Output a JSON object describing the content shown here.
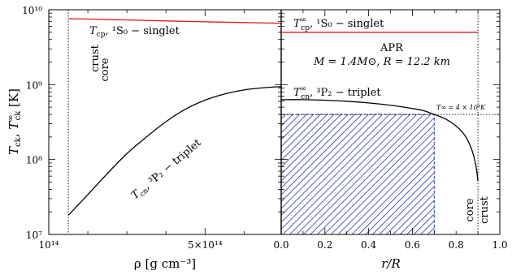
{
  "chart_data": [
    {
      "type": "line",
      "panel": "left",
      "xlabel": "ρ [g cm⁻³]",
      "ylabel": "T_ck, T∞_ck [K]",
      "x_scale": "linear",
      "y_scale": "log",
      "xlim": [
        100000000000000.0,
        695000000000000.0
      ],
      "ylim": [
        10000000.0,
        10000000000.0
      ],
      "x_tick_labels": [
        "10¹⁴",
        "5×10¹⁴"
      ],
      "x_ticks": [
        100000000000000.0,
        500000000000000.0
      ],
      "y_tick_labels": [
        "10⁷",
        "10⁸",
        "10⁹",
        "10¹⁰"
      ],
      "y_ticks": [
        10000000.0,
        100000000.0,
        1000000000.0,
        10000000000.0
      ],
      "boundary": {
        "x": 150000000000000.0,
        "labels": [
          "crust",
          "core"
        ]
      },
      "series": [
        {
          "label": "T_cp, ¹S₀ – singlet",
          "color": "#e31a1c",
          "x": [
            150000000000000.0,
            300000000000000.0,
            500000000000000.0,
            695000000000000.0
          ],
          "y": [
            7600000000.0,
            7300000000.0,
            6900000000.0,
            6600000000.0
          ]
        },
        {
          "label": "T_cn, ³P₂ – triplet",
          "color": "#000000",
          "x": [
            150000000000000.0,
            200000000000000.0,
            250000000000000.0,
            300000000000000.0,
            350000000000000.0,
            400000000000000.0,
            450000000000000.0,
            500000000000000.0,
            550000000000000.0,
            600000000000000.0,
            650000000000000.0,
            695000000000000.0
          ],
          "y": [
            18000000.0,
            34000000.0,
            65000000.0,
            120000000.0,
            200000000.0,
            320000000.0,
            470000000.0,
            620000000.0,
            750000000.0,
            850000000.0,
            910000000.0,
            940000000.0
          ]
        }
      ]
    },
    {
      "type": "line",
      "panel": "right",
      "xlabel": "r/R",
      "x_scale": "linear",
      "y_scale": "log",
      "xlim": [
        0,
        1.0
      ],
      "ylim": [
        10000000.0,
        10000000000.0
      ],
      "x_tick_labels": [
        "0.0",
        "0.2",
        "0.4",
        "0.6",
        "0.8",
        "1.0"
      ],
      "x_ticks": [
        0,
        0.2,
        0.4,
        0.6,
        0.8,
        1.0
      ],
      "boundary": {
        "x": 0.9,
        "labels": [
          "core",
          "crust"
        ]
      },
      "annotation": {
        "model": "APR",
        "params": "M = 1.4M⊙, R = 12.2 km",
        "t_line_label": "T∞ = 4 × 10⁸ K",
        "t_line_value": 400000000.0
      },
      "hatched_region": {
        "x": [
          0,
          0.7
        ],
        "y": [
          10000000.0,
          400000000.0
        ],
        "color": "#2633a6"
      },
      "series": [
        {
          "label": "T∞_cp, ¹S₀ – singlet",
          "color": "#e31a1c",
          "x": [
            0,
            0.9
          ],
          "y": [
            5000000000.0,
            5000000000.0
          ]
        },
        {
          "label": "T∞_cn, ³P₂ – triplet",
          "color": "#000000",
          "x": [
            0,
            0.1,
            0.2,
            0.3,
            0.4,
            0.5,
            0.6,
            0.65,
            0.7,
            0.75,
            0.8,
            0.84,
            0.87,
            0.89,
            0.9
          ],
          "y": [
            630000000.0,
            630000000.0,
            620000000.0,
            600000000.0,
            570000000.0,
            530000000.0,
            480000000.0,
            450000000.0,
            400000000.0,
            350000000.0,
            280000000.0,
            210000000.0,
            140000000.0,
            85000000.0,
            52000000.0
          ]
        }
      ]
    }
  ],
  "text": {
    "left_singlet_label": "T",
    "left_singlet_sub": "cp",
    "left_singlet_rest": ", ¹S₀ − singlet",
    "left_triplet_label": "T",
    "left_triplet_sub": "cn",
    "left_triplet_rest": ", ³P₂ − triplet",
    "right_singlet_label": "T",
    "right_singlet_sup": "∞",
    "right_singlet_sub": "cp",
    "right_singlet_rest": ", ¹S₀ − singlet",
    "right_triplet_label": "T",
    "right_triplet_sup": "∞",
    "right_triplet_sub": "cn",
    "right_triplet_rest": ", ³P₂ − triplet",
    "model": "APR",
    "params": "M = 1.4M⊙, R = 12.2 km",
    "t_line_label": "T∞ = 4 × 10⁸K",
    "left_crust": "crust",
    "left_core": "core",
    "right_core": "core",
    "right_crust": "crust",
    "xlabel_left": "ρ [g cm⁻³]",
    "xlabel_right": "r/R",
    "ylabel": "T_ck, T∞_ck [K]"
  }
}
